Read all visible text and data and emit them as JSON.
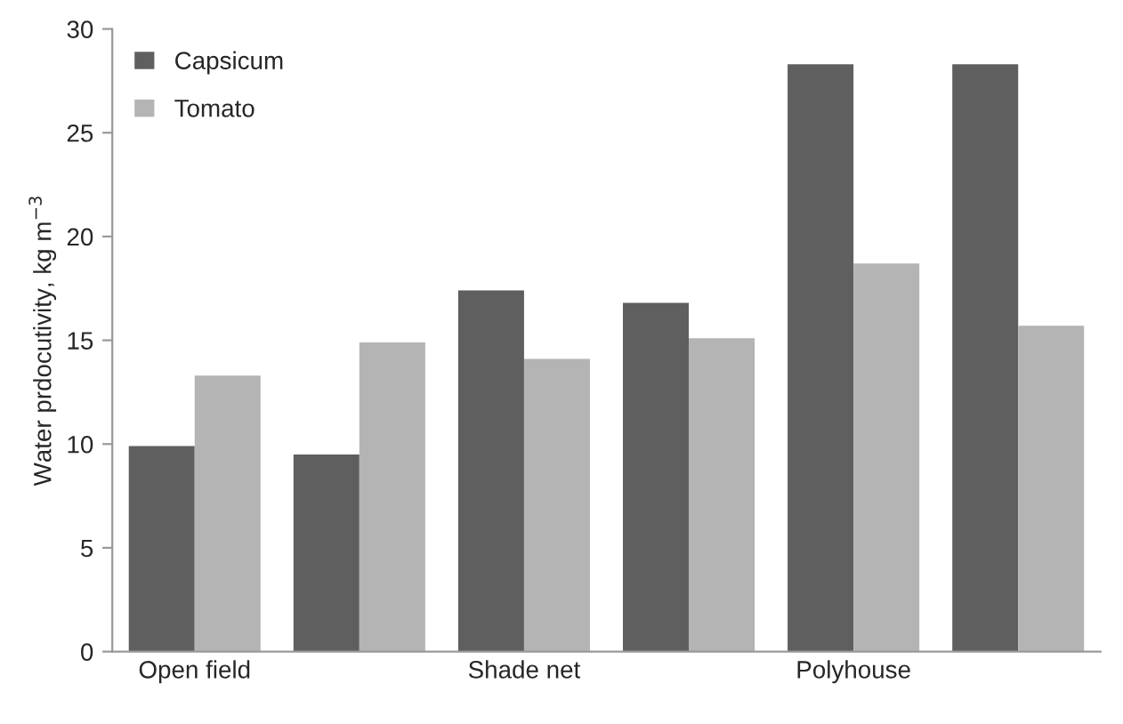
{
  "chart_data": {
    "type": "bar",
    "ylabel": "Water prdocutivity, kg m$^{−3}$",
    "categories": [
      "Open field",
      null,
      "Shade net",
      null,
      "Polyhouse",
      null
    ],
    "series": [
      {
        "name": "Capsicum",
        "color": "#5f5f5f",
        "values": [
          9.9,
          9.5,
          17.4,
          16.8,
          28.3,
          28.3
        ]
      },
      {
        "name": "Tomato",
        "color": "#b4b4b4",
        "values": [
          13.3,
          14.9,
          14.1,
          15.1,
          18.7,
          15.7
        ]
      }
    ],
    "ylim": [
      0,
      30
    ],
    "yticks": [
      0,
      5,
      10,
      15,
      20,
      25,
      30
    ],
    "grid": false,
    "legend": "top left"
  }
}
